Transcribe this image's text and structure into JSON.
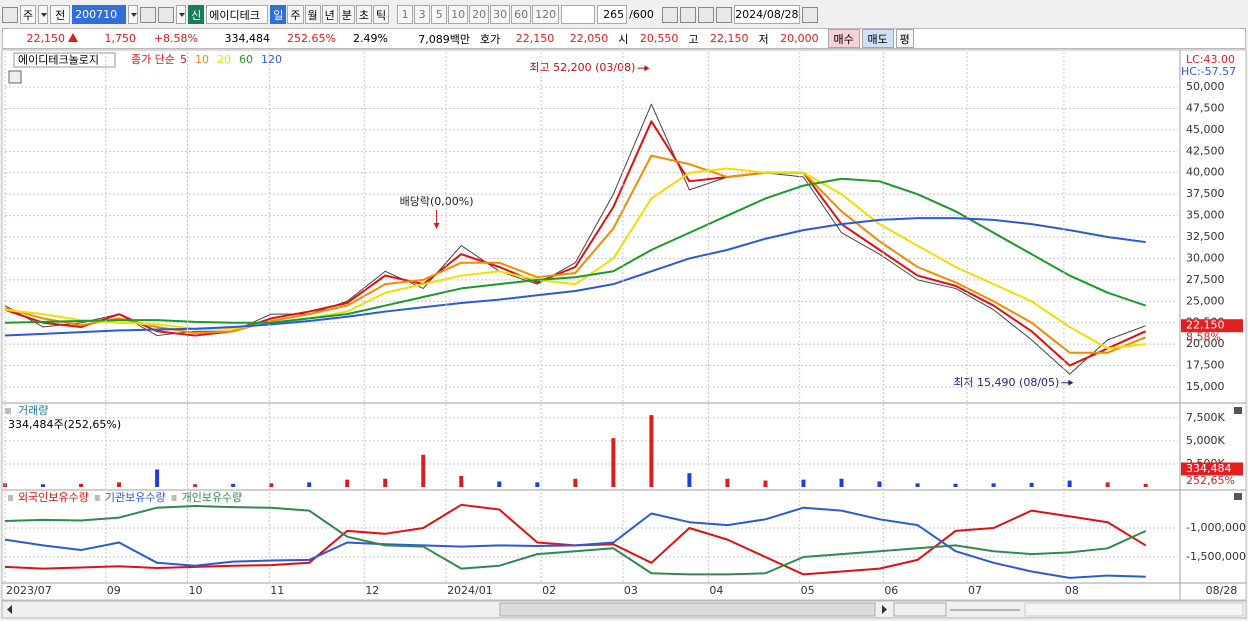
{
  "toolbar": {
    "market": "주",
    "prev": "전",
    "code": "200710",
    "badge": "신",
    "name": "에이디테크",
    "periods": [
      "일",
      "주",
      "월",
      "년",
      "분",
      "초",
      "틱"
    ],
    "intervals": [
      "1",
      "3",
      "5",
      "10",
      "20",
      "30",
      "60",
      "120"
    ],
    "count": "265",
    "max": "/600",
    "date": "2024/08/28"
  },
  "quote": {
    "price": "22,150",
    "change": "1,750",
    "change_pct": "+8.58%",
    "volume": "334,484",
    "volume_ratio": "252.65%",
    "turnover": "2.49%",
    "amount": "7,089백만",
    "bid_label": "호가",
    "ask": "22,150",
    "bid": "22,050",
    "open_label": "시",
    "open": "20,550",
    "high_label": "고",
    "high": "22,150",
    "low_label": "저",
    "low": "20,000",
    "buy": "매수",
    "sell": "매도",
    "avg": "평"
  },
  "chart_data": [
    {
      "type": "line",
      "title": "에이디테크놀로지",
      "legend_prefix": "종가 단순",
      "lc_label": "LC:43.00",
      "hc_label": "HC:-57.57",
      "x": [
        0,
        2,
        4,
        6,
        8,
        10,
        12,
        14,
        16,
        18,
        20,
        22,
        24,
        26,
        28,
        30,
        32,
        34,
        36,
        38,
        40,
        42,
        44,
        46,
        48,
        50,
        52,
        54,
        56,
        58,
        60
      ],
      "xlim": [
        0,
        61.7
      ],
      "ylim": [
        13130,
        53390
      ],
      "grid": true,
      "yticks": [
        {
          "value": 15000,
          "label": "15,000"
        },
        {
          "value": 17500,
          "label": "17,500"
        },
        {
          "value": 20000,
          "label": "20,000"
        },
        {
          "value": 22500,
          "label": "22,500"
        },
        {
          "value": 25000,
          "label": "25,000"
        },
        {
          "value": 27500,
          "label": "27,500"
        },
        {
          "value": 30000,
          "label": "30,000"
        },
        {
          "value": 32500,
          "label": "32,500"
        },
        {
          "value": 35000,
          "label": "35,000"
        },
        {
          "value": 37500,
          "label": "37,500"
        },
        {
          "value": 40000,
          "label": "40,000"
        },
        {
          "value": 42500,
          "label": "42,500"
        },
        {
          "value": 45000,
          "label": "45,000"
        },
        {
          "value": 47500,
          "label": "47,500"
        },
        {
          "value": 50000,
          "label": "50,000"
        }
      ],
      "series": [
        {
          "color": "#444444",
          "values": [
            24500,
            22000,
            22500,
            23500,
            21000,
            21500,
            21500,
            23500,
            23500,
            25000,
            28500,
            26500,
            31500,
            28500,
            27000,
            29500,
            37500,
            48000,
            38000,
            39500,
            40000,
            39500,
            33000,
            30500,
            27500,
            26500,
            24000,
            20500,
            16500,
            20500,
            22150
          ]
        },
        {
          "name": "5",
          "color": "#e01010",
          "values": [
            24000,
            22500,
            22000,
            23500,
            21500,
            21000,
            21500,
            23000,
            23800,
            24800,
            28000,
            27000,
            30500,
            29000,
            27200,
            29000,
            36000,
            46000,
            39000,
            39500,
            40000,
            40000,
            34000,
            31000,
            28000,
            26800,
            24500,
            21500,
            17500,
            19500,
            21500
          ]
        },
        {
          "name": "10",
          "color": "#f08c00",
          "values": [
            24200,
            23000,
            22200,
            23000,
            22000,
            21300,
            21500,
            22700,
            23500,
            24500,
            27000,
            27500,
            29500,
            29500,
            27800,
            28300,
            33500,
            42000,
            41000,
            39500,
            40000,
            40000,
            35500,
            32000,
            29000,
            27200,
            25000,
            22500,
            19000,
            19000,
            20800
          ]
        },
        {
          "name": "20",
          "color": "#f0e000",
          "values": [
            24000,
            23500,
            22800,
            22500,
            22300,
            21800,
            21800,
            22500,
            23000,
            23800,
            26000,
            27000,
            28000,
            28500,
            27500,
            27000,
            30000,
            37000,
            40000,
            40500,
            40000,
            40000,
            37500,
            34000,
            31500,
            29000,
            27000,
            25000,
            22000,
            19500,
            20000
          ]
        },
        {
          "name": "60",
          "color": "#1a9a2a",
          "values": [
            22500,
            22600,
            22700,
            22800,
            22800,
            22600,
            22500,
            22500,
            23000,
            23500,
            24500,
            25500,
            26500,
            27000,
            27500,
            27800,
            28500,
            31000,
            33000,
            35000,
            37000,
            38500,
            39300,
            39000,
            37500,
            35500,
            33000,
            30500,
            28000,
            26000,
            24500
          ]
        },
        {
          "name": "120",
          "color": "#2a5ad8",
          "values": [
            21000,
            21200,
            21400,
            21600,
            21700,
            21800,
            22000,
            22300,
            22700,
            23200,
            23800,
            24300,
            24800,
            25200,
            25700,
            26200,
            27000,
            28500,
            30000,
            31000,
            32300,
            33300,
            34000,
            34500,
            34700,
            34700,
            34500,
            34000,
            33300,
            32500,
            31900
          ]
        }
      ],
      "annotations": [
        {
          "text": "최고 52,200 (03/08)",
          "x": 34,
          "y": 52200,
          "color": "#c01010"
        },
        {
          "text": "최저 15,490 (08/05)",
          "x": 56.3,
          "y": 15490,
          "color": "#1a2a80"
        },
        {
          "text": "배당락(0,00%)",
          "x": 22.7,
          "color": "#222222"
        }
      ],
      "current": {
        "value": 22150,
        "label": "22,150"
      },
      "current_change": "8.58%"
    },
    {
      "type": "bar",
      "title": "거래량",
      "subtitle": "334,484주(252,65%)",
      "x": [
        0,
        2,
        4,
        6,
        8,
        10,
        12,
        14,
        16,
        18,
        20,
        22,
        24,
        26,
        28,
        30,
        32,
        34,
        36,
        38,
        40,
        42,
        44,
        46,
        48,
        50,
        52,
        54,
        56,
        58,
        60
      ],
      "xlim": [
        0,
        61.7
      ],
      "ylim": [
        0,
        8900000
      ],
      "grid": true,
      "yticks": [
        {
          "value": 2500000,
          "label": "2,500K"
        },
        {
          "value": 5000000,
          "label": "5,000K"
        },
        {
          "value": 7500000,
          "label": "7,500K"
        }
      ],
      "values": [
        400000,
        300000,
        350000,
        500000,
        1900000,
        300000,
        350000,
        400000,
        500000,
        800000,
        900000,
        3500000,
        1200000,
        600000,
        500000,
        900000,
        5300000,
        7800000,
        1500000,
        900000,
        700000,
        800000,
        900000,
        600000,
        400000,
        350000,
        400000,
        450000,
        700000,
        500000,
        334484
      ],
      "colors": [
        "#d81e1e",
        "#1e3fd8",
        "#d81e1e",
        "#d81e1e",
        "#1e3fd8",
        "#d81e1e",
        "#1e3fd8",
        "#d81e1e",
        "#1e3fd8",
        "#d81e1e",
        "#d81e1e",
        "#d81e1e",
        "#d81e1e",
        "#1e3fd8",
        "#1e3fd8",
        "#d81e1e",
        "#d81e1e",
        "#d81e1e",
        "#1e3fd8",
        "#d81e1e",
        "#d81e1e",
        "#1e3fd8",
        "#1e3fd8",
        "#1e3fd8",
        "#1e3fd8",
        "#1e3fd8",
        "#1e3fd8",
        "#1e3fd8",
        "#1e3fd8",
        "#d81e1e",
        "#d81e1e"
      ],
      "current": {
        "value": 334484,
        "label": "334,484"
      },
      "current_ratio": "252,65%"
    },
    {
      "type": "line",
      "x": [
        0,
        2,
        4,
        6,
        8,
        10,
        12,
        14,
        16,
        18,
        20,
        22,
        24,
        26,
        28,
        30,
        32,
        34,
        36,
        38,
        40,
        42,
        44,
        46,
        48,
        50,
        52,
        54,
        56,
        58,
        60
      ],
      "xlim": [
        0,
        61.7
      ],
      "ylim": [
        -1931000,
        -379000
      ],
      "grid": true,
      "xticks": [
        {
          "value": 0,
          "label": "2023/07"
        },
        {
          "value": 5.3,
          "label": "09"
        },
        {
          "value": 9.6,
          "label": "10"
        },
        {
          "value": 13.9,
          "label": "11"
        },
        {
          "value": 18.9,
          "label": "12"
        },
        {
          "value": 23.2,
          "label": "2024/01"
        },
        {
          "value": 28.2,
          "label": "02"
        },
        {
          "value": 32.5,
          "label": "03"
        },
        {
          "value": 37,
          "label": "04"
        },
        {
          "value": 41.8,
          "label": "05"
        },
        {
          "value": 46.2,
          "label": "06"
        },
        {
          "value": 50.6,
          "label": "07"
        },
        {
          "value": 55.7,
          "label": "08"
        },
        {
          "value": 63.1,
          "label": "08/28"
        }
      ],
      "yticks": [
        {
          "value": -1000000,
          "label": "-1,000,000"
        },
        {
          "value": -1500000,
          "label": "-1,500,000"
        }
      ],
      "series": [
        {
          "name": "외국인보유수량",
          "color": "#e01010",
          "values": [
            -1670000,
            -1700000,
            -1680000,
            -1660000,
            -1690000,
            -1670000,
            -1650000,
            -1640000,
            -1600000,
            -1050000,
            -1100000,
            -1000000,
            -600000,
            -680000,
            -1250000,
            -1300000,
            -1280000,
            -1600000,
            -1000000,
            -1200000,
            -1500000,
            -1800000,
            -1750000,
            -1700000,
            -1550000,
            -1050000,
            -1000000,
            -700000,
            -800000,
            -900000,
            -1300000
          ]
        },
        {
          "name": "기관보유수량",
          "color": "#2a5ad8",
          "values": [
            -1200000,
            -1300000,
            -1380000,
            -1250000,
            -1600000,
            -1650000,
            -1580000,
            -1560000,
            -1550000,
            -1250000,
            -1280000,
            -1300000,
            -1320000,
            -1300000,
            -1310000,
            -1300000,
            -1250000,
            -750000,
            -900000,
            -950000,
            -850000,
            -650000,
            -700000,
            -850000,
            -950000,
            -1400000,
            -1600000,
            -1750000,
            -1860000,
            -1820000,
            -1840000
          ]
        },
        {
          "name": "개인보유수량",
          "color": "#2e8a50",
          "values": [
            -880000,
            -860000,
            -870000,
            -820000,
            -650000,
            -620000,
            -640000,
            -650000,
            -700000,
            -1150000,
            -1300000,
            -1320000,
            -1700000,
            -1650000,
            -1450000,
            -1400000,
            -1350000,
            -1780000,
            -1800000,
            -1800000,
            -1780000,
            -1500000,
            -1450000,
            -1400000,
            -1350000,
            -1300000,
            -1400000,
            -1450000,
            -1420000,
            -1350000,
            -1050000
          ]
        }
      ]
    }
  ]
}
